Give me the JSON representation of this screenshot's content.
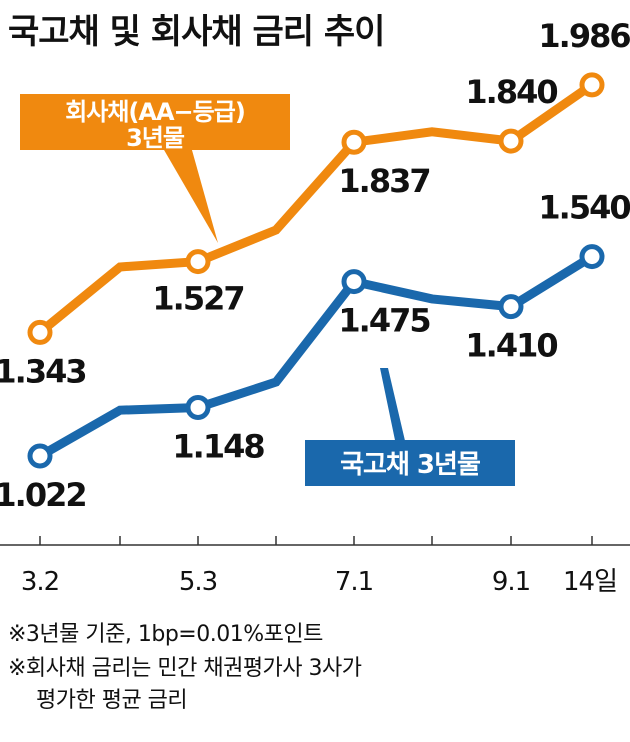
{
  "chart_data": {
    "type": "line",
    "title": "국고채 및 회사채 금리 추이",
    "categories": [
      "3.2",
      "",
      "5.3",
      "",
      "7.1",
      "",
      "9.1",
      "14일"
    ],
    "ylim": [
      0.9,
      2.1
    ],
    "grid": false,
    "series": [
      {
        "name": "회사채(AA−등급) 3년물",
        "color": "#F0890F",
        "values": [
          1.343,
          1.513,
          1.527,
          1.609,
          1.837,
          1.864,
          1.84,
          1.986
        ],
        "labels": [
          "1.343",
          "",
          "1.527",
          "",
          "1.837",
          "",
          "1.840",
          "1.986"
        ]
      },
      {
        "name": "국고채 3년물",
        "color": "#1A68AC",
        "values": [
          1.022,
          1.141,
          1.148,
          1.214,
          1.475,
          1.43,
          1.41,
          1.54
        ],
        "labels": [
          "1.022",
          "",
          "1.148",
          "",
          "1.475",
          "",
          "1.410",
          "1.540"
        ]
      }
    ],
    "legend_labels": {
      "corporate_line1": "회사채(AA−등급)",
      "corporate_line2": "3년물",
      "treasury": "국고채 3년물"
    }
  },
  "notes": [
    "※3년물 기준, 1bp=0.01%포인트",
    "※회사채 금리는 민간 채권평가사 3사가",
    "평가한 평균 금리"
  ]
}
